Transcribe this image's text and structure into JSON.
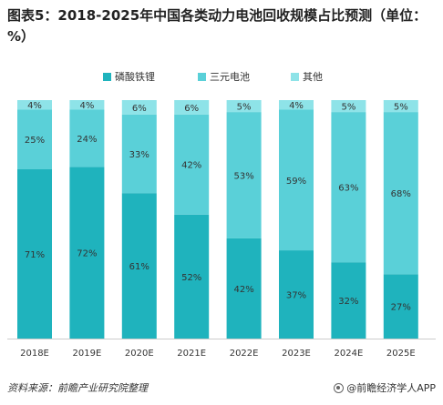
{
  "title": "图表5：2018-2025年中国各类动力电池回收规模占比预测（单位：%）",
  "source": "资料来源：前瞻产业研究院整理",
  "brand": "@前瞻经济学人APP",
  "chart_data": {
    "type": "bar",
    "stacked": true,
    "title": "图表5：2018-2025年中国各类动力电池回收规模占比预测（单位：%）",
    "categories": [
      "2018E",
      "2019E",
      "2020E",
      "2021E",
      "2022E",
      "2023E",
      "2024E",
      "2025E"
    ],
    "series": [
      {
        "name": "磷酸铁锂",
        "color": "#1fb3bd",
        "values": [
          71,
          72,
          61,
          52,
          42,
          37,
          32,
          27
        ]
      },
      {
        "name": "三元电池",
        "color": "#5ad0d8",
        "values": [
          25,
          24,
          33,
          42,
          53,
          59,
          63,
          68
        ]
      },
      {
        "name": "其他",
        "color": "#8ee3e8",
        "values": [
          4,
          4,
          6,
          6,
          5,
          4,
          5,
          5
        ]
      }
    ],
    "data_labels": [
      [
        "71%",
        "72%",
        "61%",
        "52%",
        "42%",
        "37%",
        "32%",
        "27%"
      ],
      [
        "25%",
        "24%",
        "33%",
        "42%",
        "53%",
        "59%",
        "63%",
        "68%"
      ],
      [
        "4%",
        "4%",
        "6%",
        "6%",
        "5%",
        "4%",
        "5%",
        "5%"
      ]
    ],
    "ylim": [
      0,
      100
    ],
    "legend_position": "top",
    "grid": false
  }
}
